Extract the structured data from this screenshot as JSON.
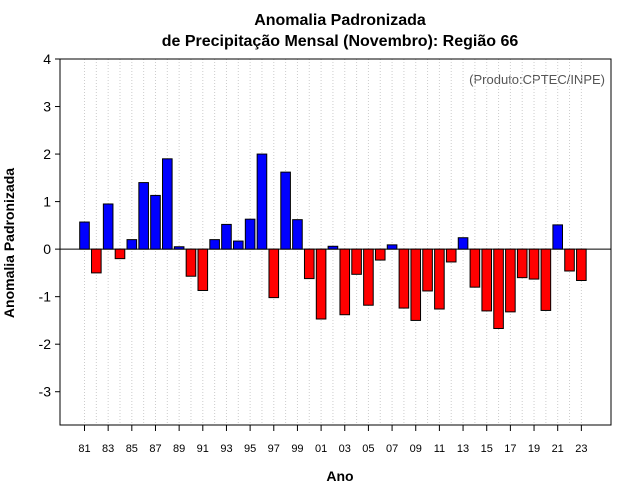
{
  "chart_data": {
    "type": "bar",
    "title_line1": "Anomalia Padronizada",
    "title_line2": "de Precipitação Mensal (Novembro): Região 66",
    "xlabel": "Ano",
    "ylabel": "Anomalia Padronizada",
    "credit": "(Produto:CPTEC/INPE)",
    "ylim": [
      -3.7,
      4
    ],
    "yticks": [
      "-3",
      "-2",
      "-1",
      "0",
      "1",
      "2",
      "3",
      "4"
    ],
    "grid": "vertical dotted",
    "positive_color": "#0000ff",
    "negative_color": "#ff0000",
    "categories": [
      "81",
      "82",
      "83",
      "84",
      "85",
      "86",
      "87",
      "88",
      "89",
      "90",
      "91",
      "92",
      "93",
      "94",
      "95",
      "96",
      "97",
      "98",
      "99",
      "00",
      "01",
      "02",
      "03",
      "04",
      "05",
      "06",
      "07",
      "08",
      "09",
      "10",
      "11",
      "12",
      "13",
      "14",
      "15",
      "16",
      "17",
      "18",
      "19",
      "20",
      "21",
      "22",
      "23"
    ],
    "tick_labels": [
      "81",
      "83",
      "85",
      "87",
      "89",
      "91",
      "93",
      "95",
      "97",
      "99",
      "01",
      "03",
      "05",
      "07",
      "09",
      "11",
      "13",
      "15",
      "17",
      "19",
      "21",
      "23"
    ],
    "values": [
      0.57,
      -0.5,
      0.95,
      -0.2,
      0.2,
      1.4,
      1.13,
      1.9,
      0.05,
      -0.57,
      -0.87,
      0.2,
      0.52,
      0.17,
      0.63,
      2.0,
      -1.02,
      1.62,
      0.62,
      -0.62,
      -1.47,
      0.06,
      -1.38,
      -0.53,
      -1.18,
      -0.23,
      0.09,
      -1.24,
      -1.5,
      -0.88,
      -1.26,
      -0.27,
      0.24,
      -0.8,
      -1.3,
      -1.67,
      -1.32,
      -0.6,
      -0.63,
      -1.29,
      0.51,
      -0.46,
      -0.66
    ]
  }
}
